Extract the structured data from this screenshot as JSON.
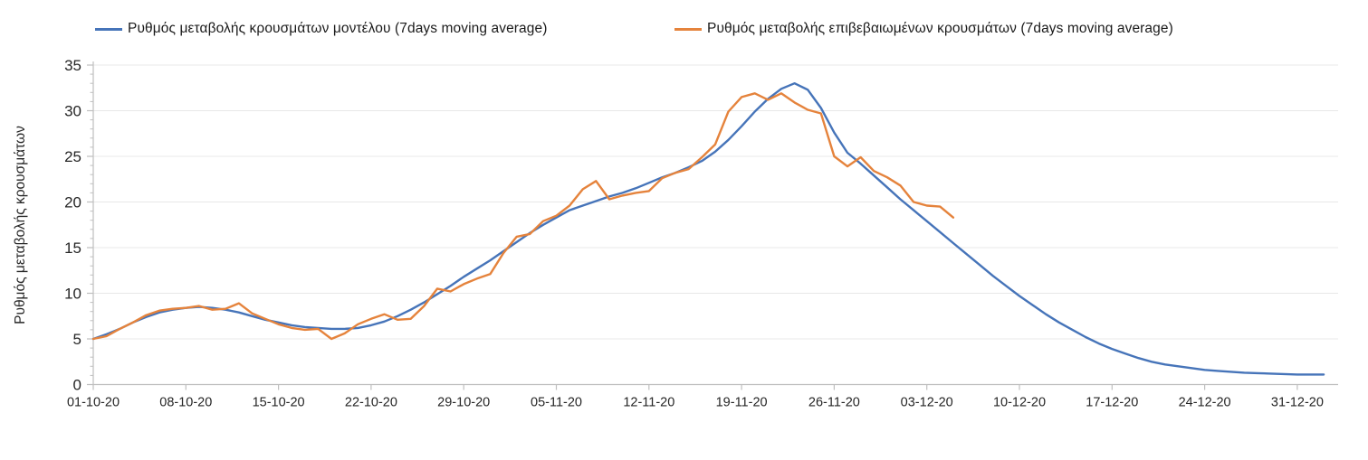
{
  "chart_data": {
    "type": "line",
    "title": "",
    "ylabel": "Ρυθμός μεταβολής κρουσμάτων",
    "xlabel": "",
    "ylim": [
      0,
      35
    ],
    "y_ticks": [
      0,
      5,
      10,
      15,
      20,
      25,
      30,
      35
    ],
    "y_minor_tick_step": 1,
    "grid": "horizontal-major-only",
    "legend_position": "top",
    "x_tick_labels": [
      "01-10-20",
      "08-10-20",
      "15-10-20",
      "22-10-20",
      "29-10-20",
      "05-11-20",
      "12-11-20",
      "19-11-20",
      "26-11-20",
      "03-12-20",
      "10-12-20",
      "17-12-20",
      "24-12-20",
      "31-12-20"
    ],
    "x_tick_interval_days": 7,
    "series": [
      {
        "name": "Ρυθμός μεταβολής κρουσμάτων μοντέλου (7days moving average)",
        "color": "#4674B9",
        "start_date": "01-10-20",
        "end_date": "02-01-21",
        "step_days": 1,
        "values": [
          5.0,
          5.5,
          6.1,
          6.8,
          7.4,
          7.9,
          8.2,
          8.4,
          8.5,
          8.4,
          8.2,
          7.9,
          7.5,
          7.1,
          6.8,
          6.5,
          6.3,
          6.2,
          6.1,
          6.1,
          6.2,
          6.5,
          6.9,
          7.5,
          8.2,
          9.0,
          9.9,
          10.8,
          11.8,
          12.7,
          13.6,
          14.6,
          15.6,
          16.6,
          17.5,
          18.3,
          19.1,
          19.6,
          20.1,
          20.6,
          21.0,
          21.5,
          22.1,
          22.7,
          23.2,
          23.8,
          24.5,
          25.5,
          26.8,
          28.3,
          29.9,
          31.3,
          32.4,
          33.0,
          32.3,
          30.3,
          27.6,
          25.4,
          24.2,
          22.9,
          21.6,
          20.3,
          19.1,
          17.9,
          16.7,
          15.5,
          14.3,
          13.1,
          11.9,
          10.8,
          9.7,
          8.7,
          7.7,
          6.8,
          6.0,
          5.2,
          4.5,
          3.9,
          3.4,
          2.9,
          2.5,
          2.2,
          2.0,
          1.8,
          1.6,
          1.5,
          1.4,
          1.3,
          1.25,
          1.2,
          1.15,
          1.1,
          1.1,
          1.1
        ]
      },
      {
        "name": "Ρυθμός μεταβολής επιβεβαιωμένων κρουσμάτων (7days moving average)",
        "color": "#E5833C",
        "start_date": "01-10-20",
        "end_date": "05-12-20",
        "step_days": 1,
        "values": [
          5.0,
          5.3,
          6.1,
          6.8,
          7.6,
          8.1,
          8.3,
          8.4,
          8.6,
          8.2,
          8.3,
          8.9,
          7.8,
          7.2,
          6.6,
          6.2,
          6.0,
          6.1,
          5.0,
          5.6,
          6.6,
          7.2,
          7.7,
          7.1,
          7.2,
          8.6,
          10.5,
          10.2,
          11.0,
          11.6,
          12.1,
          14.4,
          16.2,
          16.5,
          17.9,
          18.5,
          19.6,
          21.4,
          22.3,
          20.3,
          20.7,
          21.0,
          21.2,
          22.6,
          23.2,
          23.6,
          24.9,
          26.3,
          29.9,
          31.5,
          31.9,
          31.2,
          31.9,
          30.9,
          30.1,
          29.7,
          25.0,
          23.9,
          24.9,
          23.4,
          22.7,
          21.8,
          20.0,
          19.6,
          19.5,
          18.3
        ]
      }
    ]
  },
  "colors": {
    "axis_line": "#BFBFBF",
    "gridline": "#E8E8E8",
    "tick_label": "#262626",
    "legend_text": "#1a1a1a",
    "background": "#ffffff"
  }
}
